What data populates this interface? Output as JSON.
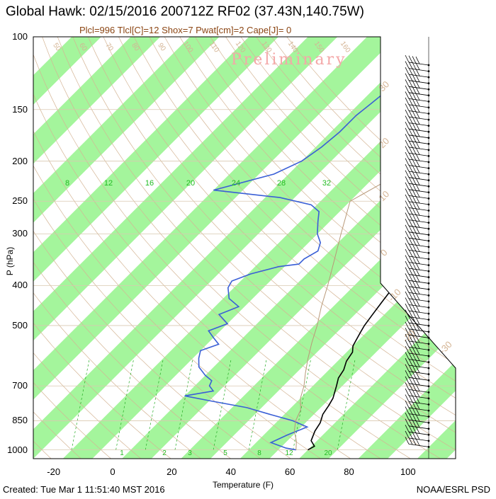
{
  "header": {
    "title": "Global Hawk: 02/15/2016 200712Z RF02 (37.43N,140.75W)",
    "subtitle": "Plcl=996 Tlcl[C]=12 Shox=7 Pwat[cm]=2 Cape[J]= 0",
    "watermark": "Preliminary"
  },
  "footer": {
    "created": "Created: Tue Mar  1 11:51:40 MST 2016",
    "credit": "NOAA/ESRL PSD"
  },
  "colors": {
    "band": "#a4f59c",
    "temperature": "#000000",
    "dewpoint": "#3a5fd6",
    "mixing_ratio": "#22aa22",
    "adiabat": "#d4b494",
    "parcel": "#b89878"
  },
  "chart_data": {
    "type": "line",
    "subtype": "skew-t log-p",
    "xlabel": "Temperature (F)",
    "ylabel": "P (hPa)",
    "y_log_scale": true,
    "xlim": [
      -30,
      113
    ],
    "ylim": [
      1050,
      100
    ],
    "x_ticks": [
      "-20",
      "0",
      "20",
      "40",
      "60",
      "80",
      "100"
    ],
    "y_ticks": [
      "100",
      "150",
      "200",
      "250",
      "300",
      "400",
      "500",
      "700",
      "850",
      "1000"
    ],
    "mixing_ratio_labels": [
      "8",
      "12",
      "16",
      "20",
      "24",
      "28",
      "32"
    ],
    "mixing_ratio_bottom_labels": [
      "1",
      "2",
      "3",
      "5",
      "8",
      "12",
      "20"
    ],
    "dry_adiabat_labels": [
      "50",
      "60",
      "70",
      "80",
      "90",
      "100",
      "110",
      "120",
      "130",
      "140",
      "150",
      "160"
    ],
    "moist_adiabat_labels": [
      "-30",
      "-20",
      "-10",
      "0",
      "10",
      "20",
      "30"
    ],
    "series": [
      {
        "name": "temperature",
        "points": [
          [
            60,
            1000
          ],
          [
            61,
            980
          ],
          [
            58,
            950
          ],
          [
            56,
            900
          ],
          [
            55,
            860
          ],
          [
            53,
            820
          ],
          [
            52,
            780
          ],
          [
            51,
            750
          ],
          [
            48,
            700
          ],
          [
            46,
            670
          ],
          [
            45,
            640
          ],
          [
            43,
            610
          ],
          [
            42,
            580
          ],
          [
            40,
            560
          ],
          [
            38,
            520
          ],
          [
            37,
            500
          ],
          [
            36,
            470
          ],
          [
            35,
            440
          ],
          [
            34,
            410
          ],
          [
            32,
            380
          ],
          [
            30,
            360
          ],
          [
            28,
            345
          ],
          [
            25,
            320
          ],
          [
            21,
            290
          ],
          [
            16,
            270
          ],
          [
            13,
            250
          ],
          [
            13,
            235
          ],
          [
            15,
            220
          ],
          [
            17,
            205
          ],
          [
            17,
            190
          ],
          [
            17,
            175
          ],
          [
            17,
            160
          ],
          [
            16,
            150
          ],
          [
            15,
            140
          ],
          [
            14,
            125
          ],
          [
            14,
            112
          ],
          [
            14,
            108
          ]
        ]
      },
      {
        "name": "dewpoint",
        "points": [
          [
            56,
            1000
          ],
          [
            52,
            990
          ],
          [
            45,
            960
          ],
          [
            48,
            920
          ],
          [
            52,
            880
          ],
          [
            45,
            850
          ],
          [
            35,
            820
          ],
          [
            25,
            790
          ],
          [
            10,
            760
          ],
          [
            0,
            740
          ],
          [
            8,
            720
          ],
          [
            5,
            700
          ],
          [
            4,
            680
          ],
          [
            0,
            660
          ],
          [
            -5,
            630
          ],
          [
            -8,
            600
          ],
          [
            -10,
            575
          ],
          [
            -6,
            555
          ],
          [
            -10,
            535
          ],
          [
            -14,
            515
          ],
          [
            -10,
            495
          ],
          [
            -16,
            470
          ],
          [
            -12,
            450
          ],
          [
            -18,
            430
          ],
          [
            -22,
            405
          ],
          [
            -23,
            390
          ],
          [
            -19,
            375
          ],
          [
            -12,
            360
          ],
          [
            -6,
            355
          ],
          [
            -6,
            345
          ],
          [
            -4,
            330
          ],
          [
            -6,
            315
          ],
          [
            -10,
            300
          ],
          [
            -14,
            280
          ],
          [
            -17,
            265
          ],
          [
            -22,
            255
          ],
          [
            -35,
            245
          ],
          [
            -60,
            235
          ],
          [
            -45,
            215
          ],
          [
            -40,
            200
          ],
          [
            -38,
            185
          ],
          [
            -37,
            170
          ],
          [
            -37,
            155
          ],
          [
            -36,
            145
          ],
          [
            -35,
            135
          ],
          [
            -33,
            125
          ]
        ]
      },
      {
        "name": "parcel",
        "points": [
          [
            56,
            1000
          ],
          [
            53,
            950
          ],
          [
            49,
            900
          ],
          [
            46,
            850
          ],
          [
            44,
            800
          ],
          [
            40,
            750
          ],
          [
            37,
            700
          ],
          [
            33,
            650
          ],
          [
            29,
            600
          ],
          [
            25,
            550
          ],
          [
            21,
            500
          ],
          [
            16,
            450
          ],
          [
            11,
            400
          ],
          [
            5,
            350
          ],
          [
            -2,
            300
          ],
          [
            -10,
            250
          ],
          [
            -6,
            230
          ],
          [
            -3,
            215
          ]
        ]
      }
    ],
    "wind_barbs_levels": 64
  }
}
